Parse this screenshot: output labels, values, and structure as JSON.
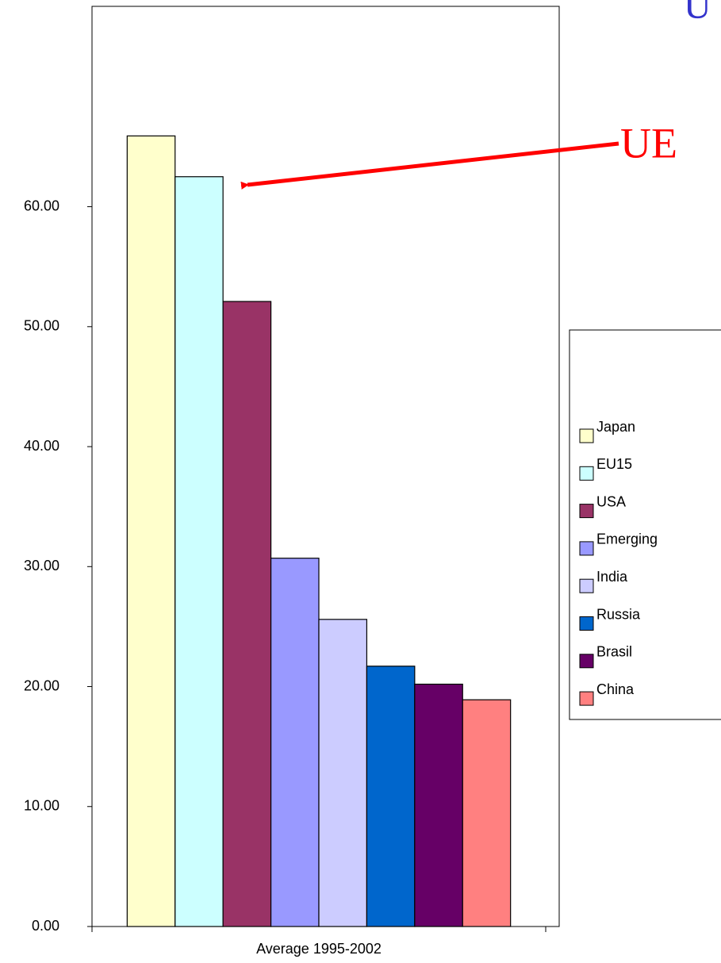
{
  "chart_data": {
    "type": "bar",
    "title": "U",
    "annotation": "UE",
    "categories": [
      "Average 1995-2002"
    ],
    "series": [
      {
        "name": "Japan",
        "color": "#ffffcc",
        "values": [
          65.9
        ]
      },
      {
        "name": "EU15",
        "color": "#ccffff",
        "values": [
          62.5
        ]
      },
      {
        "name": "USA",
        "color": "#993366",
        "values": [
          52.1
        ]
      },
      {
        "name": "Emerging",
        "color": "#9999ff",
        "values": [
          30.7
        ]
      },
      {
        "name": "India",
        "color": "#ccccff",
        "values": [
          25.6
        ]
      },
      {
        "name": "Russia",
        "color": "#0066cc",
        "values": [
          21.7
        ]
      },
      {
        "name": "Brasil",
        "color": "#660066",
        "values": [
          20.2
        ]
      },
      {
        "name": "China",
        "color": "#ff8080",
        "values": [
          18.9
        ]
      }
    ],
    "ylim": [
      0,
      76.7
    ],
    "yticks": [
      {
        "value": 0,
        "label": "0.00"
      },
      {
        "value": 10,
        "label": "10.00"
      },
      {
        "value": 20,
        "label": "20.00"
      },
      {
        "value": 30,
        "label": "30.00"
      },
      {
        "value": 40,
        "label": "40.00"
      },
      {
        "value": 50,
        "label": "50.00"
      },
      {
        "value": 60,
        "label": "60.00"
      }
    ],
    "legend": "right"
  }
}
